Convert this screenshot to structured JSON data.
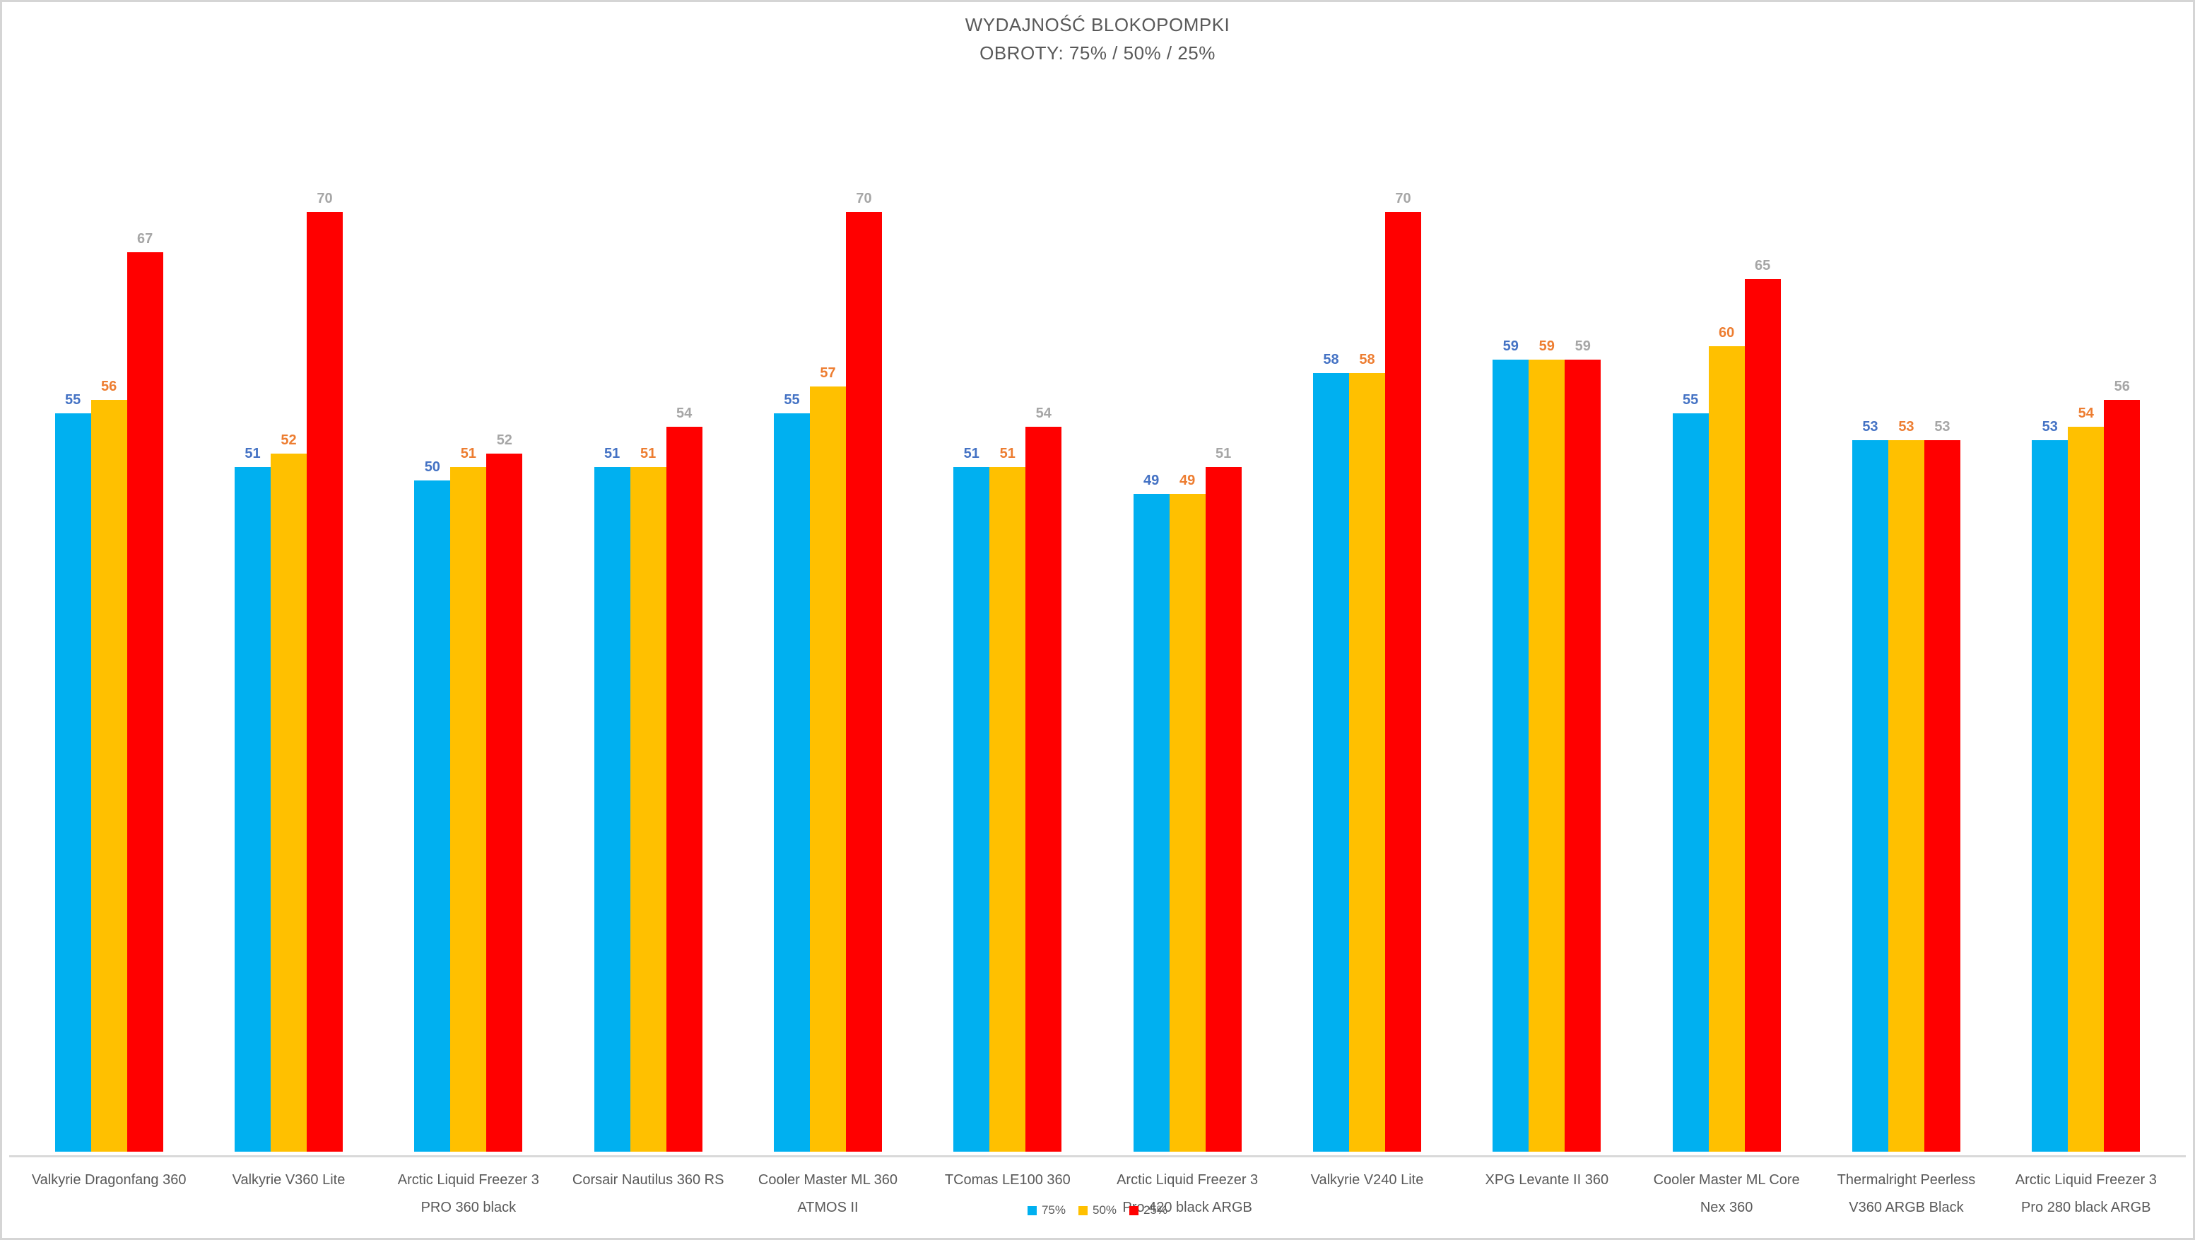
{
  "title": {
    "line1": "WYDAJNOŚĆ BLOKOPOMPKI",
    "line2": "OBROTY: 75% / 50% / 25%"
  },
  "chart_data": {
    "type": "bar",
    "title": "WYDAJNOŚĆ BLOKOPOMPKI",
    "subtitle": "OBROTY: 75% / 50% / 25%",
    "categories": [
      "Valkyrie Dragonfang 360",
      "Valkyrie V360 Lite",
      "Arctic Liquid Freezer 3 PRO 360 black",
      "Corsair Nautilus 360 RS",
      "Cooler Master ML 360 ATMOS II",
      "TComas LE100 360",
      "Arctic Liquid Freezer 3 Pro 420 black ARGB",
      "Valkyrie V240 Lite",
      "XPG Levante II 360",
      "Cooler Master ML Core Nex 360",
      "Thermalright Peerless V360 ARGB Black",
      "Arctic Liquid Freezer 3 Pro 280 black ARGB"
    ],
    "series": [
      {
        "name": "75%",
        "color": "#00B0F0",
        "label_color": "#4472C4",
        "values": [
          55,
          51,
          50,
          51,
          55,
          51,
          49,
          58,
          59,
          55,
          53,
          53
        ]
      },
      {
        "name": "50%",
        "color": "#FFC000",
        "label_color": "#ED7D31",
        "values": [
          56,
          52,
          51,
          51,
          57,
          51,
          49,
          58,
          59,
          60,
          53,
          54
        ]
      },
      {
        "name": "25%",
        "color": "#FF0000",
        "label_color": "#A6A6A6",
        "values": [
          67,
          70,
          52,
          54,
          70,
          54,
          51,
          70,
          59,
          65,
          53,
          56
        ]
      }
    ],
    "ylim": [
      0,
      70
    ],
    "y_axis_visible": false,
    "gridlines": false,
    "value_labels": "above-bars",
    "legend_position": "bottom-center"
  },
  "style": {
    "axis_line_color": "#D9D9D9",
    "frame_color": "#D5D5D5",
    "text_color": "#595959",
    "background": "#FFFFFF"
  }
}
